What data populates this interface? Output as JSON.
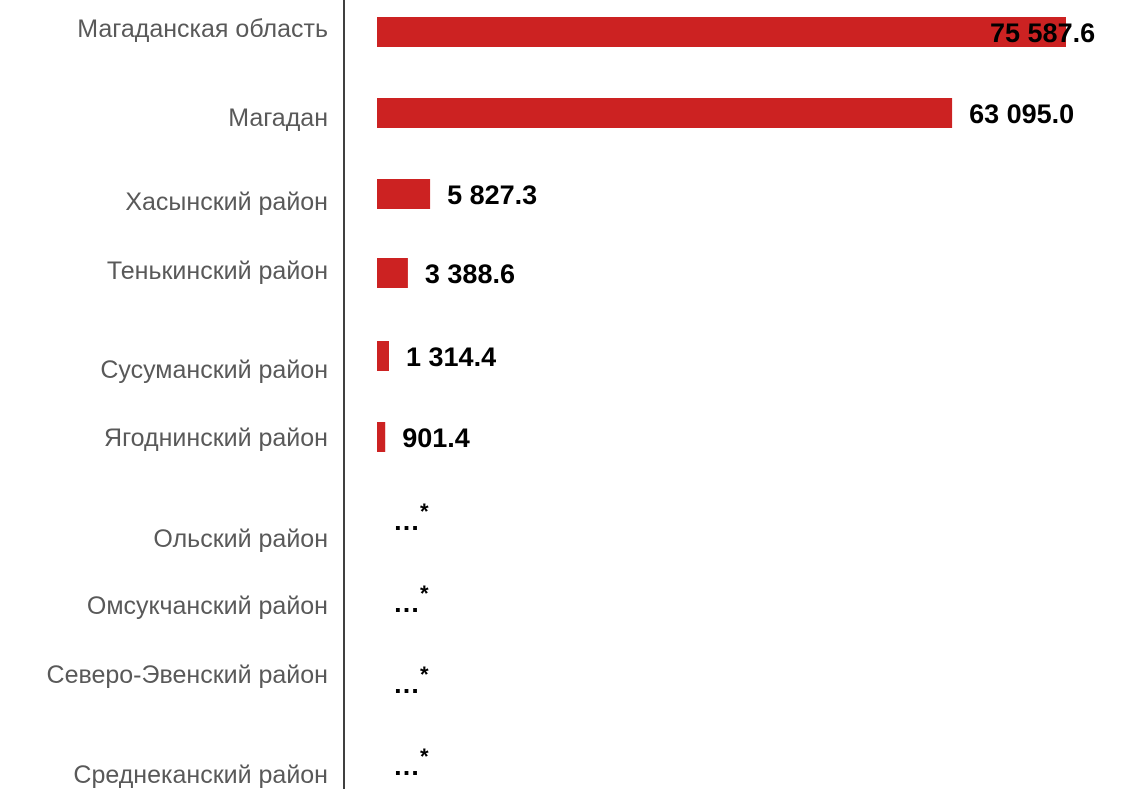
{
  "chart_data": {
    "type": "bar",
    "orientation": "horizontal",
    "categories": [
      "Магаданская область",
      "Магадан",
      "Хасынский район",
      "Тенькинский район",
      "Сусуманский район",
      "Ягоднинский район",
      "Ольский район",
      "Омсукчанский район",
      "Северо-Эвенский район",
      "Среднеканский район"
    ],
    "values": [
      75587.6,
      63095.0,
      5827.3,
      3388.6,
      1314.4,
      901.4,
      null,
      null,
      null,
      null
    ],
    "value_labels": [
      "75 587.6",
      "63 095.0",
      "5 827.3",
      "3 388.6",
      "1 314.4",
      "901.4",
      "…*",
      "…*",
      "…*",
      "…*"
    ],
    "xlim": [
      0,
      75587.6
    ],
    "bar_color": "#cc2222",
    "axis_color": "#404040",
    "grid": false,
    "title": "",
    "xlabel": "",
    "ylabel": ""
  }
}
